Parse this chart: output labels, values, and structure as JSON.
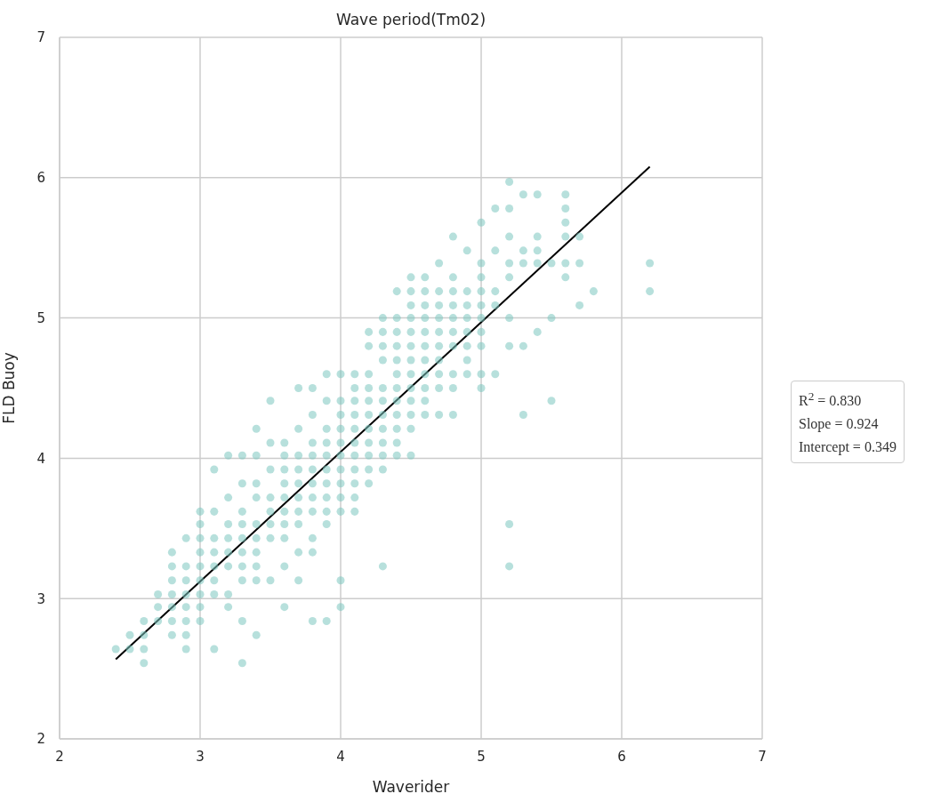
{
  "chart_data": {
    "type": "scatter",
    "title": "Wave period(Tm02)",
    "xlabel": "Waverider",
    "ylabel": "FLD Buoy",
    "xlim": [
      2,
      7
    ],
    "xticks": [
      2,
      3,
      4,
      5,
      6,
      7
    ],
    "ylim": [
      2,
      7
    ],
    "yticks": [
      2,
      3,
      4,
      5,
      6,
      7
    ],
    "grid": true,
    "annotations": [
      "R$^{2}$ = 0.830",
      "Slope = 0.924",
      "Intercept = 0.349"
    ],
    "series": [
      {
        "color": "#7cc6bf",
        "marker": "circle",
        "x": [
          2.4,
          2.5,
          2.5,
          2.6,
          2.6,
          2.6,
          2.6,
          2.7,
          2.7,
          2.7,
          2.8,
          2.8,
          2.8,
          2.8,
          2.8,
          2.8,
          2.8,
          2.9,
          2.9,
          2.9,
          2.9,
          2.9,
          2.9,
          2.9,
          2.9,
          3.0,
          3.0,
          3.0,
          3.0,
          3.0,
          3.0,
          3.0,
          3.0,
          3.0,
          3.1,
          3.1,
          3.1,
          3.1,
          3.1,
          3.1,
          3.1,
          3.1,
          3.2,
          3.2,
          3.2,
          3.2,
          3.2,
          3.2,
          3.2,
          3.2,
          3.3,
          3.3,
          3.3,
          3.3,
          3.3,
          3.3,
          3.3,
          3.3,
          3.3,
          3.3,
          3.4,
          3.4,
          3.4,
          3.4,
          3.4,
          3.4,
          3.4,
          3.4,
          3.4,
          3.4,
          3.5,
          3.5,
          3.5,
          3.5,
          3.5,
          3.5,
          3.5,
          3.5,
          3.6,
          3.6,
          3.6,
          3.6,
          3.6,
          3.6,
          3.6,
          3.6,
          3.6,
          3.6,
          3.7,
          3.7,
          3.7,
          3.7,
          3.7,
          3.7,
          3.7,
          3.7,
          3.7,
          3.7,
          3.8,
          3.8,
          3.8,
          3.8,
          3.8,
          3.8,
          3.8,
          3.8,
          3.8,
          3.8,
          3.8,
          3.9,
          3.9,
          3.9,
          3.9,
          3.9,
          3.9,
          3.9,
          3.9,
          3.9,
          3.9,
          3.9,
          4.0,
          4.0,
          4.0,
          4.0,
          4.0,
          4.0,
          4.0,
          4.0,
          4.0,
          4.0,
          4.0,
          4.0,
          4.1,
          4.1,
          4.1,
          4.1,
          4.1,
          4.1,
          4.1,
          4.1,
          4.1,
          4.1,
          4.1,
          4.2,
          4.2,
          4.2,
          4.2,
          4.2,
          4.2,
          4.2,
          4.2,
          4.2,
          4.2,
          4.2,
          4.3,
          4.3,
          4.3,
          4.3,
          4.3,
          4.3,
          4.3,
          4.3,
          4.3,
          4.3,
          4.3,
          4.3,
          4.4,
          4.4,
          4.4,
          4.4,
          4.4,
          4.4,
          4.4,
          4.4,
          4.4,
          4.4,
          4.4,
          4.4,
          4.5,
          4.5,
          4.5,
          4.5,
          4.5,
          4.5,
          4.5,
          4.5,
          4.5,
          4.5,
          4.5,
          4.5,
          4.5,
          4.6,
          4.6,
          4.6,
          4.6,
          4.6,
          4.6,
          4.6,
          4.6,
          4.6,
          4.6,
          4.6,
          4.7,
          4.7,
          4.7,
          4.7,
          4.7,
          4.7,
          4.7,
          4.7,
          4.7,
          4.7,
          4.8,
          4.8,
          4.8,
          4.8,
          4.8,
          4.8,
          4.8,
          4.8,
          4.8,
          4.8,
          4.9,
          4.9,
          4.9,
          4.9,
          4.9,
          4.9,
          4.9,
          4.9,
          5.0,
          5.0,
          5.0,
          5.0,
          5.0,
          5.0,
          5.0,
          5.0,
          5.0,
          5.0,
          5.1,
          5.1,
          5.1,
          5.1,
          5.1,
          5.2,
          5.2,
          5.2,
          5.2,
          5.2,
          5.2,
          5.2,
          5.2,
          5.2,
          5.3,
          5.3,
          5.3,
          5.3,
          5.3,
          5.4,
          5.4,
          5.4,
          5.4,
          5.4,
          5.5,
          5.5,
          5.5,
          5.6,
          5.6,
          5.6,
          5.6,
          5.6,
          5.6,
          5.7,
          5.7,
          5.7,
          5.8,
          6.2,
          6.2
        ],
        "values": [
          2.64,
          2.74,
          2.64,
          2.54,
          2.64,
          2.84,
          2.74,
          2.84,
          2.94,
          3.03,
          2.74,
          2.84,
          2.94,
          3.03,
          3.13,
          3.23,
          3.33,
          2.64,
          2.74,
          2.84,
          2.94,
          3.03,
          3.13,
          3.23,
          3.43,
          2.84,
          2.94,
          3.03,
          3.13,
          3.23,
          3.33,
          3.43,
          3.53,
          3.62,
          2.64,
          3.03,
          3.13,
          3.23,
          3.33,
          3.43,
          3.62,
          3.92,
          2.94,
          3.03,
          3.23,
          3.33,
          3.43,
          3.53,
          3.72,
          4.02,
          2.54,
          2.84,
          3.13,
          3.23,
          3.33,
          3.43,
          3.53,
          3.62,
          3.82,
          4.02,
          2.74,
          3.13,
          3.23,
          3.33,
          3.43,
          3.53,
          3.72,
          3.82,
          4.02,
          4.21,
          3.13,
          3.43,
          3.53,
          3.62,
          3.72,
          3.92,
          4.11,
          4.41,
          2.94,
          3.23,
          3.43,
          3.53,
          3.62,
          3.72,
          3.82,
          3.92,
          4.02,
          4.11,
          3.13,
          3.33,
          3.53,
          3.62,
          3.72,
          3.82,
          3.92,
          4.02,
          4.21,
          4.5,
          2.84,
          3.33,
          3.43,
          3.62,
          3.72,
          3.82,
          3.92,
          4.02,
          4.11,
          4.31,
          4.5,
          2.84,
          3.53,
          3.62,
          3.72,
          3.82,
          3.92,
          4.02,
          4.11,
          4.21,
          4.41,
          4.6,
          2.94,
          3.13,
          3.62,
          3.72,
          3.82,
          3.92,
          4.02,
          4.11,
          4.21,
          4.31,
          4.41,
          4.6,
          3.62,
          3.72,
          3.82,
          3.92,
          4.02,
          4.11,
          4.21,
          4.31,
          4.41,
          4.5,
          4.6,
          3.82,
          3.92,
          4.02,
          4.11,
          4.21,
          4.31,
          4.41,
          4.5,
          4.6,
          4.8,
          4.9,
          3.23,
          3.92,
          4.02,
          4.11,
          4.21,
          4.31,
          4.41,
          4.5,
          4.7,
          4.8,
          4.9,
          5.0,
          4.02,
          4.11,
          4.21,
          4.31,
          4.41,
          4.5,
          4.6,
          4.7,
          4.8,
          4.9,
          5.0,
          5.19,
          4.02,
          4.21,
          4.31,
          4.41,
          4.5,
          4.6,
          4.7,
          4.8,
          4.9,
          5.0,
          5.09,
          5.19,
          5.29,
          4.31,
          4.41,
          4.5,
          4.6,
          4.7,
          4.8,
          4.9,
          5.0,
          5.09,
          5.19,
          5.29,
          4.31,
          4.5,
          4.6,
          4.7,
          4.8,
          4.9,
          5.0,
          5.09,
          5.19,
          5.39,
          4.31,
          4.5,
          4.6,
          4.8,
          4.9,
          5.0,
          5.09,
          5.19,
          5.29,
          5.58,
          4.6,
          4.7,
          4.8,
          4.9,
          5.0,
          5.09,
          5.19,
          5.48,
          4.5,
          4.6,
          4.8,
          4.9,
          5.0,
          5.09,
          5.19,
          5.29,
          5.39,
          5.68,
          4.6,
          5.09,
          5.19,
          5.48,
          5.78,
          3.23,
          3.53,
          4.8,
          5.0,
          5.29,
          5.39,
          5.58,
          5.78,
          5.97,
          4.31,
          4.8,
          5.39,
          5.48,
          5.88,
          4.9,
          5.39,
          5.48,
          5.58,
          5.88,
          4.41,
          5.0,
          5.39,
          5.29,
          5.39,
          5.58,
          5.68,
          5.78,
          5.88,
          5.09,
          5.39,
          5.58,
          5.19,
          5.19,
          5.39
        ]
      },
      {
        "type": "line",
        "color": "#000000",
        "marker": "none",
        "line_style": "solid",
        "x": [
          2.4,
          6.2
        ],
        "values": [
          2.567,
          6.078
        ]
      }
    ]
  }
}
